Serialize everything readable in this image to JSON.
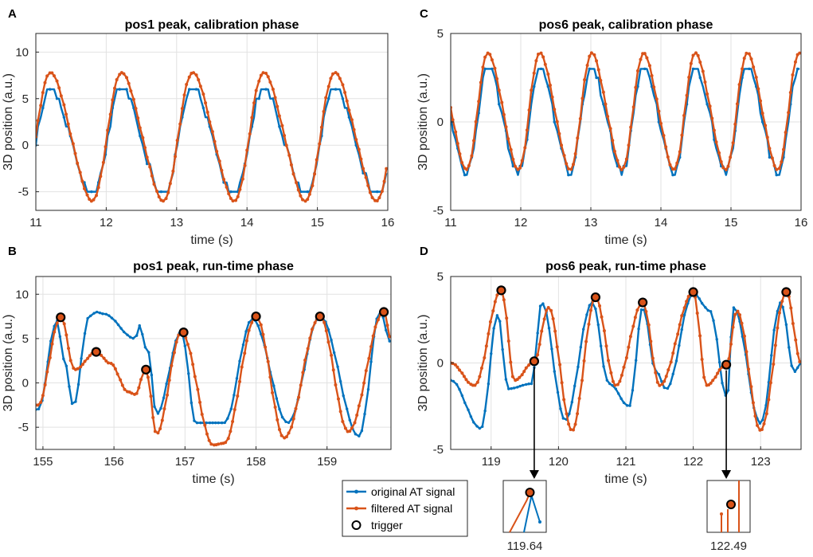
{
  "colors": {
    "original": "#0072BD",
    "filtered": "#D95319",
    "trigger": "#000000",
    "grid": "#e2e2e2",
    "axis": "#262626"
  },
  "legend": {
    "original": "original AT signal",
    "filtered": "filtered AT signal",
    "trigger": "trigger"
  },
  "chart_data": [
    {
      "id": "A",
      "letter": "A",
      "type": "line",
      "title": "pos1 peak, calibration phase",
      "xlabel": "time (s)",
      "ylabel": "3D position (a.u.)",
      "xlim": [
        11,
        16
      ],
      "ylim": [
        -7,
        12
      ],
      "xticks": [
        11,
        12,
        13,
        14,
        15,
        16
      ],
      "yticks": [
        -5,
        0,
        5,
        10
      ],
      "gen": {
        "mode": "sine",
        "start": 11,
        "end": 16,
        "step": 0.033,
        "period": 1.01,
        "phase": 11.0,
        "offset": 0.9,
        "amp": 6.9,
        "orig": {
          "scale": 0.85,
          "shift": -0.4,
          "quant": 1.0,
          "mark": 2
        }
      },
      "series": [
        {
          "name": "original AT signal",
          "x": [],
          "y": []
        },
        {
          "name": "filtered AT signal",
          "x": [],
          "y": []
        }
      ]
    },
    {
      "id": "C",
      "letter": "C",
      "type": "line",
      "title": "pos6 peak, calibration phase",
      "xlabel": "time (s)",
      "ylabel": "3D position (a.u.)",
      "xlim": [
        11,
        16
      ],
      "ylim": [
        -5,
        5
      ],
      "xticks": [
        11,
        12,
        13,
        14,
        15,
        16
      ],
      "yticks": [
        -5,
        0,
        5
      ],
      "gen": {
        "mode": "sine",
        "start": 11,
        "end": 16,
        "step": 0.033,
        "period": 0.74,
        "phase": 11.38,
        "offset": 0.6,
        "amp": 3.3,
        "orig": {
          "scale": 0.9,
          "shift": -0.4,
          "quant": 0.5,
          "mark": 2
        }
      },
      "series": [
        {
          "name": "original AT signal",
          "x": [],
          "y": []
        },
        {
          "name": "filtered AT signal",
          "x": [],
          "y": []
        }
      ]
    },
    {
      "id": "B",
      "letter": "B",
      "type": "line",
      "title": "pos1 peak, run-time phase",
      "xlabel": "time (s)",
      "ylabel": "3D position (a.u.)",
      "xlim": [
        154.9,
        159.9
      ],
      "ylim": [
        -7.5,
        12
      ],
      "xticks": [
        155,
        156,
        157,
        158,
        159
      ],
      "yticks": [
        -5,
        0,
        5,
        10
      ],
      "gen": {
        "mode": "knots",
        "step": 0.033,
        "filtered_knots": [
          [
            154.93,
            -2.5
          ],
          [
            155.25,
            7.4
          ],
          [
            155.45,
            1.5
          ],
          [
            155.75,
            3.5
          ],
          [
            155.95,
            2.2
          ],
          [
            156.2,
            -1.0
          ],
          [
            156.3,
            -1.3
          ],
          [
            156.45,
            1.5
          ],
          [
            156.6,
            -5.7
          ],
          [
            156.95,
            5.7
          ],
          [
            157.4,
            -7.0
          ],
          [
            157.55,
            -6.8
          ],
          [
            158.0,
            7.5
          ],
          [
            158.4,
            -6.2
          ],
          [
            158.9,
            7.5
          ],
          [
            159.3,
            -5.5
          ],
          [
            159.8,
            8.0
          ],
          [
            159.9,
            5.0
          ]
        ],
        "original_knots": [
          [
            154.93,
            -3.0
          ],
          [
            155.2,
            7.0
          ],
          [
            155.3,
            2.5
          ],
          [
            155.43,
            -2.5
          ],
          [
            155.65,
            7.5
          ],
          [
            155.75,
            8.0
          ],
          [
            155.85,
            7.8
          ],
          [
            156.3,
            5.0
          ],
          [
            156.35,
            6.5
          ],
          [
            156.48,
            3.5
          ],
          [
            156.6,
            -3.5
          ],
          [
            156.95,
            5.8
          ],
          [
            157.15,
            -4.5
          ],
          [
            157.55,
            -4.5
          ],
          [
            157.95,
            7.2
          ],
          [
            158.45,
            -4.5
          ],
          [
            158.9,
            7.5
          ],
          [
            159.45,
            -6.0
          ],
          [
            159.75,
            8.0
          ],
          [
            159.9,
            4.5
          ]
        ]
      },
      "triggers": {
        "x": [
          155.25,
          155.75,
          156.45,
          156.98,
          158.0,
          158.9,
          159.8
        ],
        "y": [
          7.4,
          3.5,
          1.5,
          5.7,
          7.5,
          7.5,
          8.0
        ]
      },
      "series": [
        {
          "name": "original AT signal",
          "x": [],
          "y": []
        },
        {
          "name": "filtered AT signal",
          "x": [],
          "y": []
        }
      ]
    },
    {
      "id": "D",
      "letter": "D",
      "type": "line",
      "title": "pos6 peak, run-time phase",
      "xlabel": "time (s)",
      "ylabel": "3D position (a.u.)",
      "xlim": [
        118.4,
        123.6
      ],
      "ylim": [
        -5,
        5
      ],
      "xticks": [
        119,
        120,
        121,
        122,
        123
      ],
      "yticks": [
        -5,
        0,
        5
      ],
      "gen": {
        "mode": "knots",
        "step": 0.033,
        "filtered_knots": [
          [
            118.4,
            0.0
          ],
          [
            118.75,
            -1.3
          ],
          [
            119.15,
            4.2
          ],
          [
            119.35,
            -1.0
          ],
          [
            119.64,
            0.1
          ],
          [
            119.85,
            3.2
          ],
          [
            120.2,
            -3.9
          ],
          [
            120.55,
            3.8
          ],
          [
            120.85,
            -1.3
          ],
          [
            121.25,
            3.5
          ],
          [
            121.5,
            -1.3
          ],
          [
            122.0,
            4.1
          ],
          [
            122.2,
            -1.3
          ],
          [
            122.49,
            -0.1
          ],
          [
            122.65,
            3.0
          ],
          [
            123.0,
            -3.9
          ],
          [
            123.38,
            4.1
          ],
          [
            123.6,
            0.0
          ]
        ],
        "original_knots": [
          [
            118.4,
            -1.0
          ],
          [
            118.85,
            -3.8
          ],
          [
            119.1,
            2.8
          ],
          [
            119.25,
            -1.5
          ],
          [
            119.6,
            -1.2
          ],
          [
            119.75,
            3.5
          ],
          [
            120.1,
            -3.3
          ],
          [
            120.5,
            3.5
          ],
          [
            120.75,
            -1.2
          ],
          [
            121.05,
            -2.5
          ],
          [
            121.25,
            3.2
          ],
          [
            121.45,
            -0.5
          ],
          [
            121.6,
            -1.5
          ],
          [
            122.0,
            4.0
          ],
          [
            122.25,
            3.0
          ],
          [
            122.5,
            -2.0
          ],
          [
            122.6,
            3.2
          ],
          [
            123.0,
            -3.5
          ],
          [
            123.3,
            3.5
          ],
          [
            123.5,
            -0.5
          ],
          [
            123.6,
            0.0
          ]
        ]
      },
      "triggers": {
        "x": [
          119.15,
          119.64,
          120.55,
          121.25,
          122.0,
          122.49,
          123.38
        ],
        "y": [
          4.2,
          0.1,
          3.8,
          3.5,
          4.1,
          -0.1,
          4.1
        ]
      },
      "callouts": [
        {
          "time": 119.64,
          "label": "119.64"
        },
        {
          "time": 122.49,
          "label": "122.49"
        }
      ],
      "series": [
        {
          "name": "original AT signal",
          "x": [],
          "y": []
        },
        {
          "name": "filtered AT signal",
          "x": [],
          "y": []
        }
      ]
    }
  ]
}
